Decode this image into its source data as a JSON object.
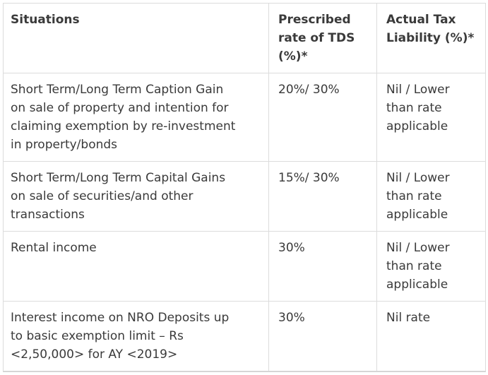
{
  "colors": {
    "text": "#3a3a3a",
    "grid_border": "#dcdcdc",
    "outer_border": "#d6d6d6",
    "background": "#ffffff"
  },
  "table": {
    "headers": {
      "situations": "Situations",
      "tds_rate": "Prescribed\nrate of TDS\n(%)*",
      "actual_liability": "Actual Tax\nLiability (%)*"
    },
    "rows": [
      {
        "situation": "Short Term/Long Term Caption Gain\non sale of property and intention for\nclaiming exemption by re-investment\nin property/bonds",
        "tds_rate": "20%/ 30%",
        "actual_liability": "Nil / Lower\nthan rate\napplicable"
      },
      {
        "situation": "Short Term/Long Term Capital Gains\non sale of securities/and other\ntransactions",
        "tds_rate": "15%/ 30%",
        "actual_liability": "Nil / Lower\nthan rate\napplicable"
      },
      {
        "situation": "Rental income",
        "tds_rate": "30%",
        "actual_liability": "Nil / Lower\nthan rate\napplicable"
      },
      {
        "situation": "Interest income on NRO Deposits up\nto basic exemption limit – Rs\n<2,50,000> for AY <2019>",
        "tds_rate": "30%",
        "actual_liability": "Nil rate"
      }
    ]
  }
}
